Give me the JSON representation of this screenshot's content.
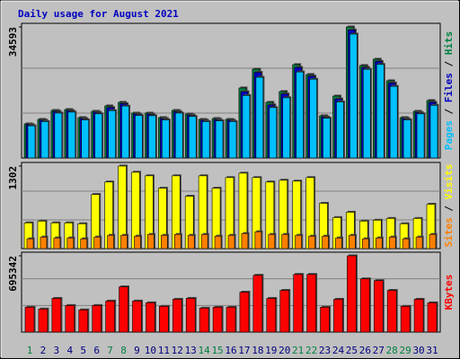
{
  "title": "Daily usage for August 2021",
  "categories": [
    "1",
    "2",
    "3",
    "4",
    "5",
    "6",
    "7",
    "8",
    "9",
    "10",
    "11",
    "12",
    "13",
    "14",
    "15",
    "16",
    "17",
    "18",
    "19",
    "20",
    "21",
    "22",
    "23",
    "24",
    "25",
    "26",
    "27",
    "28",
    "29",
    "30",
    "31"
  ],
  "category_colors": [
    "#008040",
    "#000080",
    "#000080",
    "#000080",
    "#000080",
    "#000080",
    "#008040",
    "#008040",
    "#000080",
    "#000080",
    "#000080",
    "#000080",
    "#000080",
    "#008040",
    "#008040",
    "#000080",
    "#000080",
    "#000080",
    "#000080",
    "#000080",
    "#008040",
    "#008040",
    "#000080",
    "#000080",
    "#000080",
    "#000080",
    "#000080",
    "#008040",
    "#008040",
    "#000080",
    "#000080"
  ],
  "legend_separator": " / ",
  "chart_data": [
    {
      "type": "bar",
      "ylim": [
        0,
        34593
      ],
      "yticks": [
        34593
      ],
      "series": [
        {
          "name": "Hits",
          "color": "#008040",
          "values": [
            9004,
            10188,
            12558,
            12795,
            10662,
            12321,
            13743,
            14690,
            11847,
            11847,
            10662,
            12558,
            11610,
            10188,
            10425,
            10188,
            18481,
            23457,
            14690,
            17533,
            24642,
            22035,
            11136,
            16349,
            34593,
            24405,
            26063,
            20377,
            10662,
            12321,
            15164
          ]
        },
        {
          "name": "Files",
          "color": "#0000c0",
          "values": [
            8800,
            9950,
            12300,
            12500,
            10400,
            12050,
            13300,
            14350,
            11600,
            11550,
            10400,
            12250,
            11300,
            9950,
            10150,
            9950,
            17500,
            22600,
            14000,
            16900,
            23900,
            21600,
            10850,
            15600,
            33800,
            23900,
            25500,
            19800,
            10400,
            12000,
            14700
          ]
        },
        {
          "name": "Pages",
          "color": "#00c0ff",
          "values": [
            8500,
            9600,
            11850,
            12100,
            10050,
            11650,
            12500,
            13700,
            11200,
            11150,
            10050,
            11850,
            10950,
            9600,
            9800,
            9600,
            16500,
            21300,
            13300,
            15900,
            22700,
            20800,
            10500,
            14800,
            32700,
            23400,
            24700,
            18900,
            10050,
            11650,
            13900
          ]
        }
      ]
    },
    {
      "type": "bar",
      "ylim": [
        0,
        1302
      ],
      "yticks": [
        1302
      ],
      "series": [
        {
          "name": "Visits",
          "color": "#ffff00",
          "values": [
            406,
            434,
            406,
            406,
            392,
            854,
            1050,
            1302,
            1204,
            1148,
            952,
            1148,
            826,
            1148,
            952,
            1120,
            1190,
            1120,
            1050,
            1078,
            1064,
            1120,
            714,
            490,
            574,
            434,
            448,
            476,
            392,
            476,
            700
          ]
        },
        {
          "name": "Sites",
          "color": "#ff8000",
          "values": [
            154,
            182,
            168,
            168,
            154,
            182,
            210,
            210,
            196,
            224,
            210,
            224,
            210,
            224,
            196,
            210,
            238,
            266,
            224,
            224,
            210,
            196,
            196,
            168,
            210,
            154,
            168,
            182,
            154,
            182,
            224
          ]
        }
      ]
    },
    {
      "type": "bar",
      "ylim": [
        0,
        695342
      ],
      "yticks": [
        695342
      ],
      "series": [
        {
          "name": "KBytes",
          "color": "#ff0000",
          "values": [
            226380,
            210210,
            307230,
            242550,
            202125,
            242550,
            282975,
            412335,
            282975,
            266805,
            234465,
            299145,
            307230,
            218295,
            226380,
            226380,
            363825,
            517440,
            307230,
            379995,
            525525,
            525525,
            226380,
            299145,
            695342,
            485100,
            468930,
            379995,
            234465,
            299145,
            266805
          ]
        }
      ]
    }
  ]
}
